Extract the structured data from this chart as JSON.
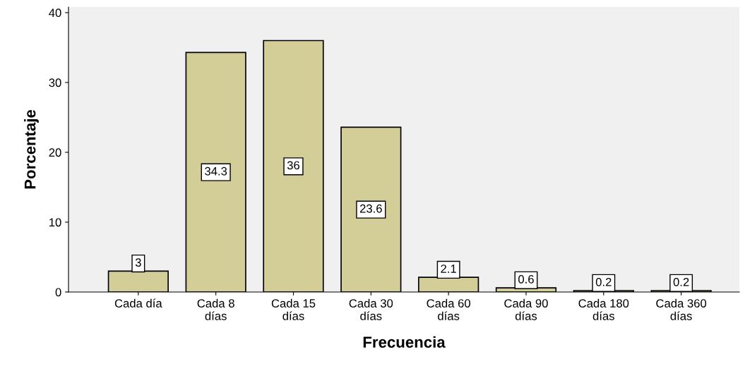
{
  "chart_data": {
    "type": "bar",
    "xlabel": "Frecuencia",
    "ylabel": "Porcentaje",
    "categories": [
      "Cada día",
      "Cada 8\ndías",
      "Cada 15\ndías",
      "Cada 30\ndías",
      "Cada 60\ndías",
      "Cada 90\ndías",
      "Cada 180\ndías",
      "Cada 360\ndías"
    ],
    "values": [
      3,
      34.3,
      36,
      23.6,
      2.1,
      0.6,
      0.2,
      0.2
    ],
    "color": "#d3ce97",
    "ylim": [
      0,
      40.8
    ],
    "yticks": [
      0,
      10,
      20,
      30,
      40
    ],
    "grid": false,
    "data_labels": true
  }
}
